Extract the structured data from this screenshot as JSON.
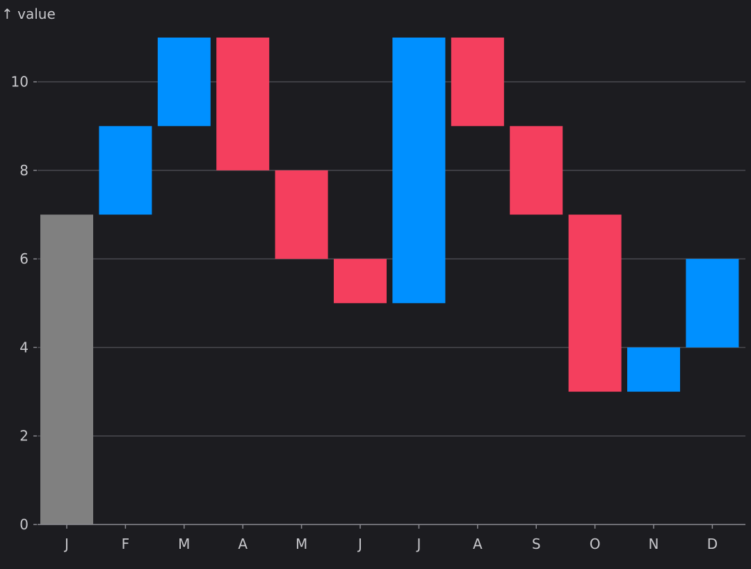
{
  "colors": {
    "background": "#1c1c20",
    "increase": "#0090ff",
    "decrease": "#f43f5e",
    "total": "#808080",
    "grid": "#4a4a50",
    "axis": "#8a8a90",
    "text": "#c8c8cc"
  },
  "chart_data": {
    "type": "bar",
    "subtype": "waterfall",
    "title": "",
    "xlabel": "",
    "ylabel": "↑ value",
    "ylim": [
      0,
      11
    ],
    "yticks": [
      0,
      2,
      4,
      6,
      8,
      10
    ],
    "ytick_labels": [
      "0",
      "2",
      "4",
      "6",
      "8",
      "10"
    ],
    "grid": true,
    "categories": [
      "J",
      "F",
      "M",
      "A",
      "M",
      "J",
      "J",
      "A",
      "S",
      "O",
      "N",
      "D"
    ],
    "bars": [
      {
        "label": "J",
        "start": 0,
        "end": 7,
        "kind": "total"
      },
      {
        "label": "F",
        "start": 7,
        "end": 9,
        "kind": "increase"
      },
      {
        "label": "M",
        "start": 9,
        "end": 11,
        "kind": "increase"
      },
      {
        "label": "A",
        "start": 11,
        "end": 8,
        "kind": "decrease"
      },
      {
        "label": "M",
        "start": 8,
        "end": 6,
        "kind": "decrease"
      },
      {
        "label": "J",
        "start": 6,
        "end": 5,
        "kind": "decrease"
      },
      {
        "label": "J",
        "start": 5,
        "end": 11,
        "kind": "increase"
      },
      {
        "label": "A",
        "start": 11,
        "end": 9,
        "kind": "decrease"
      },
      {
        "label": "S",
        "start": 9,
        "end": 7,
        "kind": "decrease"
      },
      {
        "label": "O",
        "start": 7,
        "end": 3,
        "kind": "decrease"
      },
      {
        "label": "N",
        "start": 3,
        "end": 4,
        "kind": "increase"
      },
      {
        "label": "D",
        "start": 4,
        "end": 6,
        "kind": "increase"
      }
    ]
  }
}
